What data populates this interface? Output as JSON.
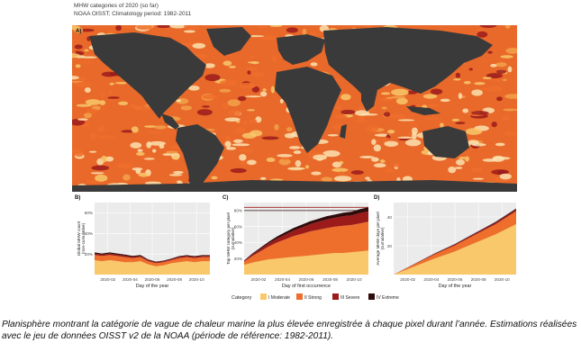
{
  "figure": {
    "title": "MHW categories of 2020 (so far)",
    "subtitle": "NOAA OISST; Climatology period: 1982-2011",
    "colors": {
      "I Moderate": "#f8c86a",
      "II Strong": "#ee6f2c",
      "III Severe": "#9b1b1b",
      "IV Extreme": "#2f0b0b",
      "land": "#3a3a3a",
      "panel_bg": "#ebebeb",
      "grid": "#ffffff"
    },
    "legend": {
      "title": "Category",
      "items": [
        "I Moderate",
        "II Strong",
        "III Severe",
        "IV Extreme"
      ],
      "placement": "bottom"
    }
  },
  "chart_data": [
    {
      "panel": "A)",
      "type": "heatmap",
      "description_key": "global map of highest MHW category per pixel",
      "categories": [
        "I Moderate",
        "II Strong",
        "III Severe",
        "IV Extreme"
      ]
    },
    {
      "panel": "B)",
      "type": "area",
      "xlabel": "Day of the year",
      "ylabel": "Global MHW count\n(non-cumulative)",
      "x_ticks": [
        "2020-02",
        "2020-04",
        "2020-06",
        "2020-08",
        "2020-10"
      ],
      "y_ticks": [
        "20%",
        "40%",
        "60%"
      ],
      "ylim": [
        0,
        70
      ],
      "xlim": [
        1,
        300
      ],
      "x": [
        1,
        20,
        40,
        60,
        80,
        100,
        120,
        140,
        160,
        180,
        200,
        220,
        240,
        260,
        280,
        300
      ],
      "series": [
        {
          "name": "I Moderate",
          "values": [
            14,
            13,
            14,
            13,
            12,
            12,
            13,
            10,
            8,
            9,
            11,
            12,
            13,
            12,
            13,
            13
          ]
        },
        {
          "name": "II Strong",
          "values": [
            5,
            5,
            5,
            5,
            5,
            4,
            4,
            3,
            3,
            3,
            3,
            4,
            4,
            4,
            4,
            4
          ]
        },
        {
          "name": "III Severe",
          "values": [
            1.5,
            1.5,
            1.5,
            1.5,
            1.5,
            1.3,
            1.2,
            1,
            1,
            1,
            1,
            1.2,
            1.2,
            1.2,
            1.2,
            1.2
          ]
        },
        {
          "name": "IV Extreme",
          "values": [
            1,
            1,
            1,
            1,
            1,
            0.8,
            0.8,
            0.6,
            0.6,
            0.6,
            0.6,
            0.7,
            0.7,
            0.7,
            0.7,
            0.7
          ]
        }
      ]
    },
    {
      "panel": "C)",
      "type": "area",
      "xlabel": "Day of first occurrence",
      "ylabel": "Top MHW category per pixel\n(cumulative)",
      "x_ticks": [
        "2020-02",
        "2020-04",
        "2020-06",
        "2020-08",
        "2020-10"
      ],
      "y_ticks": [
        "20%",
        "40%",
        "60%",
        "80%"
      ],
      "ylim": [
        0,
        90
      ],
      "xlim": [
        1,
        300
      ],
      "hlines": [
        84,
        80
      ],
      "x": [
        1,
        20,
        40,
        60,
        80,
        100,
        120,
        140,
        160,
        180,
        200,
        220,
        240,
        260,
        280,
        300
      ],
      "series": [
        {
          "name": "I Moderate",
          "values": [
            12,
            15,
            17,
            19,
            20,
            21,
            22,
            23,
            24,
            25,
            26,
            27,
            27,
            28,
            29,
            30
          ]
        },
        {
          "name": "II Strong",
          "values": [
            4,
            8,
            12,
            16,
            20,
            23,
            26,
            28,
            30,
            31,
            32,
            33,
            34,
            34,
            35,
            36
          ]
        },
        {
          "name": "III Severe",
          "values": [
            1,
            2,
            3,
            4,
            5,
            6,
            7,
            8,
            9,
            10,
            11,
            11,
            12,
            12,
            13,
            13
          ]
        },
        {
          "name": "IV Extreme",
          "values": [
            0.5,
            1,
            1.5,
            2,
            2.5,
            3,
            3.2,
            3.4,
            3.6,
            3.8,
            4,
            4.2,
            4.4,
            4.6,
            4.8,
            5
          ]
        }
      ]
    },
    {
      "panel": "D)",
      "type": "area",
      "xlabel": "Day of the year",
      "ylabel": "Average MHW days per pixel\n(cumulative)",
      "x_ticks": [
        "2020-02",
        "2020-04",
        "2020-06",
        "2020-08",
        "2020-10"
      ],
      "y_ticks": [
        "20",
        "40"
      ],
      "ylim": [
        0,
        50
      ],
      "xlim": [
        1,
        300
      ],
      "x": [
        1,
        50,
        100,
        150,
        200,
        250,
        300
      ],
      "series": [
        {
          "name": "I Moderate",
          "values": [
            0,
            5.5,
            11,
            16,
            22,
            28,
            35
          ]
        },
        {
          "name": "II Strong",
          "values": [
            0,
            1.4,
            2.8,
            4.2,
            5.6,
            7,
            9
          ]
        },
        {
          "name": "III Severe",
          "values": [
            0,
            0.2,
            0.5,
            0.7,
            0.9,
            1.1,
            1.3
          ]
        },
        {
          "name": "IV Extreme",
          "values": [
            0,
            0.1,
            0.2,
            0.3,
            0.4,
            0.5,
            0.6
          ]
        }
      ]
    }
  ],
  "caption": "Planisphère montrant la catégorie de vague de chaleur marine la plus élevée enregistrée à chaque pixel durant l’année. Estimations réalisées avec le jeu de données OISST v2 de la NOAA (période de référence: 1982-2011)."
}
